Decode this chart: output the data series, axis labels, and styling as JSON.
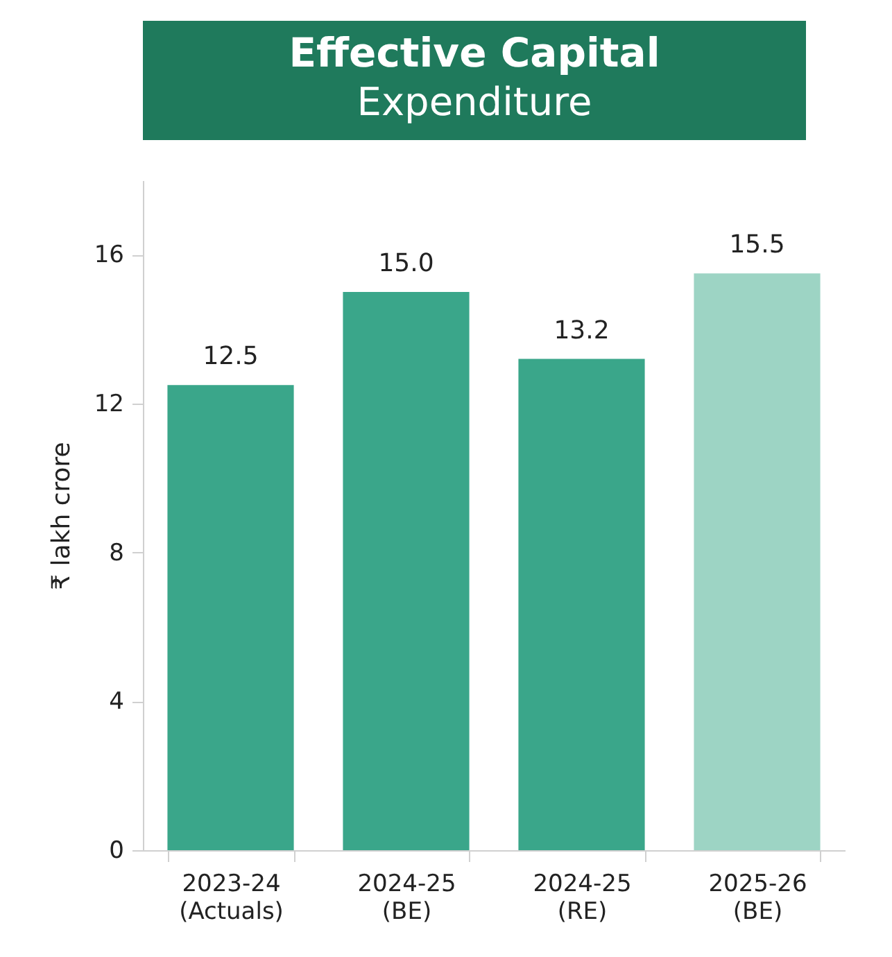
{
  "chart_data": {
    "type": "bar",
    "title": "Effective Capital",
    "subtitle": "Expenditure",
    "ylabel": "₹ lakh crore",
    "categories": [
      "2023-24 (Actuals)",
      "2024-25 (BE)",
      "2024-25 (RE)",
      "2025-26 (BE)"
    ],
    "values": [
      12.5,
      15.0,
      13.2,
      15.5
    ],
    "value_labels": [
      "12.5",
      "15.0",
      "13.2",
      "15.5"
    ],
    "colors": [
      "#3aa68a",
      "#3aa68a",
      "#3aa68a",
      "#9dd4c4"
    ],
    "ylim": [
      0,
      18
    ],
    "yticks": [
      0,
      4,
      8,
      12,
      16
    ],
    "grid": false
  }
}
